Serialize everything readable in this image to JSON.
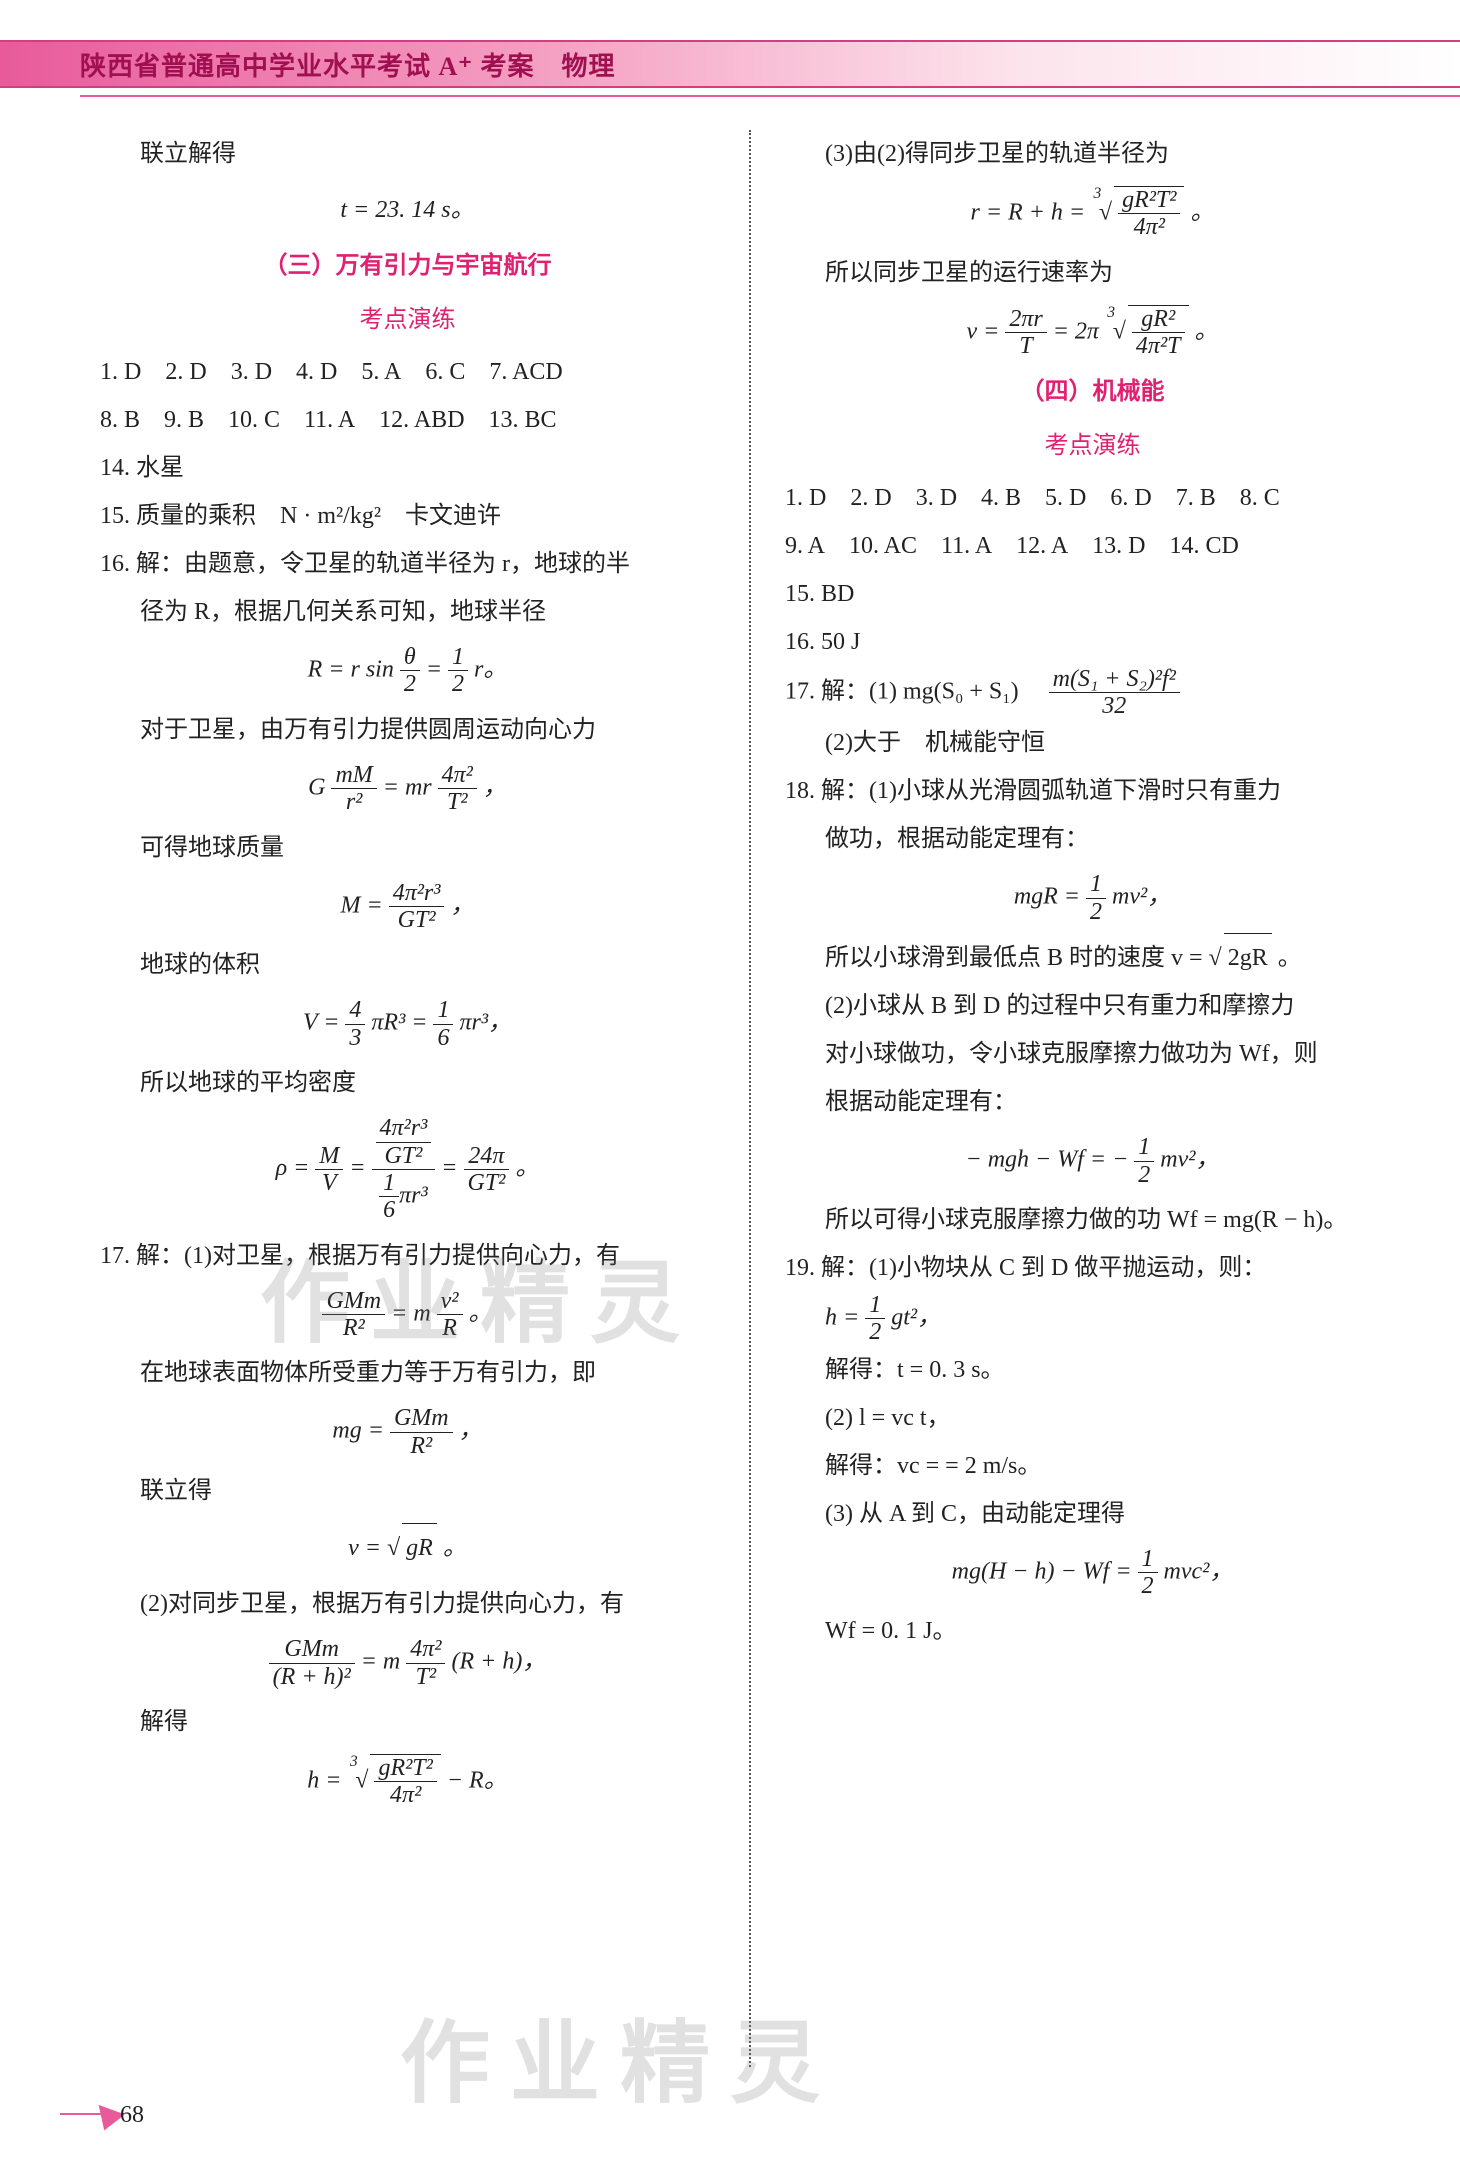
{
  "header": {
    "title": "陕西省普通高中学业水平考试 A⁺ 考案　物理"
  },
  "colors": {
    "accent": "#e02070",
    "band_start": "#e85a9a",
    "band_text": "#a01050",
    "text": "#222222",
    "wm": "rgba(120,120,120,0.22)"
  },
  "watermark": "作业精灵",
  "page_number": "68",
  "left": {
    "p1": "联立解得",
    "f1": "t = 23. 14 s。",
    "sec3_title": "（三）万有引力与宇宙航行",
    "sec3_sub": "考点演练",
    "ans_row1": [
      "1. D",
      "2. D",
      "3. D",
      "4. D",
      "5. A",
      "6. C",
      "7. ACD"
    ],
    "ans_row2": [
      "8. B",
      "9. B",
      "10. C",
      "11. A",
      "12. ABD",
      "13. BC"
    ],
    "l14": "14. 水星",
    "l15": "15. 质量的乘积　N · m²/kg²　卡文迪许",
    "l16a": "16. 解：由题意，令卫星的轨道半径为 r，地球的半",
    "l16b": "径为 R，根据几何关系可知，地球半径",
    "f16_1_lhs": "R = r sin",
    "f16_1_num": "θ",
    "f16_1_den": "2",
    "f16_1_mid": " = ",
    "f16_1_num2": "1",
    "f16_1_den2": "2",
    "f16_1_tail": " r。",
    "l16c": "对于卫星，由万有引力提供圆周运动向心力",
    "f16_2_a": "G",
    "f16_2_num1": "mM",
    "f16_2_den1": "r²",
    "f16_2_mid": " = mr",
    "f16_2_num2": "4π²",
    "f16_2_den2": "T²",
    "f16_2_tail": "，",
    "l16d": "可得地球质量",
    "f16_3_a": "M = ",
    "f16_3_num": "4π²r³",
    "f16_3_den": "GT²",
    "f16_3_tail": "，",
    "l16e": "地球的体积",
    "f16_4_a": "V = ",
    "f16_4_num1": "4",
    "f16_4_den1": "3",
    "f16_4_mid1": "πR³ = ",
    "f16_4_num2": "1",
    "f16_4_den2": "6",
    "f16_4_tail": "πr³，",
    "l16f": "所以地球的平均密度",
    "f16_5_a": "ρ = ",
    "f16_5_num1": "M",
    "f16_5_den1": "V",
    "f16_5_mid": " = ",
    "f16_5_bignum_num": "4π²r³",
    "f16_5_bignum_den": "GT²",
    "f16_5_bigden_num": "1",
    "f16_5_bigden_den": "6",
    "f16_5_bigden_tail": "πr³",
    "f16_5_mid2": " = ",
    "f16_5_num3": "24π",
    "f16_5_den3": "GT²",
    "f16_5_tail": "。",
    "l17a": "17. 解：(1)对卫星，根据万有引力提供向心力，有",
    "f17_1_num1": "GMm",
    "f17_1_den1": "R²",
    "f17_1_mid": " = m",
    "f17_1_num2": "v²",
    "f17_1_den2": "R",
    "f17_1_tail": "。",
    "l17b": "在地球表面物体所受重力等于万有引力，即",
    "f17_2_a": "mg = ",
    "f17_2_num": "GMm",
    "f17_2_den": "R²",
    "f17_2_tail": "，",
    "l17c": "联立得",
    "f17_3": "v = ",
    "f17_3_rad": "gR",
    "f17_3_tail": "。",
    "l17d": "(2)对同步卫星，根据万有引力提供向心力，有",
    "f17_4_num1": "GMm",
    "f17_4_den1": "(R + h)²",
    "f17_4_mid": " = m",
    "f17_4_num2": "4π²",
    "f17_4_den2": "T²",
    "f17_4_tail": "(R + h)，",
    "l17e": "解得",
    "f17_5_a": "h = ",
    "f17_5_rad_num": "gR²T²",
    "f17_5_rad_den": "4π²",
    "f17_5_tail": " − R。"
  },
  "right": {
    "p1": "(3)由(2)得同步卫星的轨道半径为",
    "f1_a": "r = R + h = ",
    "f1_rad_num": "gR²T²",
    "f1_rad_den": "4π²",
    "f1_tail": "。",
    "p2": "所以同步卫星的运行速率为",
    "f2_a": "v = ",
    "f2_num1": "2πr",
    "f2_den1": "T",
    "f2_mid": " = 2π",
    "f2_rad_num": "gR²",
    "f2_rad_den": "4π²T",
    "f2_tail": "。",
    "sec4_title": "（四）机械能",
    "sec4_sub": "考点演练",
    "ans_r1": [
      "1. D",
      "2. D",
      "3. D",
      "4. B",
      "5. D",
      "6. D",
      "7. B",
      "8. C"
    ],
    "ans_r2": [
      "9. A",
      "10. AC",
      "11. A",
      "12. A",
      "13. D",
      "14. CD"
    ],
    "l15": "15. BD",
    "l16": "16. 50 J",
    "l17a": "17. 解：(1) mg(S₀ + S₁)　",
    "f17_num": "m(S₁ + S₂)²f²",
    "f17_den": "32",
    "l17b": "(2)大于　机械能守恒",
    "l18a": "18. 解：(1)小球从光滑圆弧轨道下滑时只有重力",
    "l18b": "做功，根据动能定理有：",
    "f18_1_a": "mgR = ",
    "f18_1_num": "1",
    "f18_1_den": "2",
    "f18_1_tail": "mv²，",
    "l18c": "所以小球滑到最低点 B 时的速度 v = ",
    "f18c_rad": "2gR",
    "f18c_tail": "。",
    "l18d": "(2)小球从 B 到 D 的过程中只有重力和摩擦力",
    "l18e": "对小球做功，令小球克服摩擦力做功为 Wf，则",
    "l18f": "根据动能定理有：",
    "f18_2_a": "− mgh − Wf = −",
    "f18_2_num": "1",
    "f18_2_den": "2",
    "f18_2_tail": "mv²，",
    "l18g": "所以可得小球克服摩擦力做的功 Wf = mg(R − h)。",
    "l19a": "19. 解：(1)小物块从 C 到 D 做平抛运动，则：",
    "f19_1_a": "h = ",
    "f19_1_num": "1",
    "f19_1_den": "2",
    "f19_1_tail": "gt²，",
    "l19b": "解得：t = 0. 3 s。",
    "l19c": "(2) l = vc t，",
    "l19d": "解得：vc =  = 2 m/s。",
    "l19e": "(3) 从 A 到 C，由动能定理得",
    "f19_2_a": "mg(H − h) − Wf = ",
    "f19_2_num": "1",
    "f19_2_den": "2",
    "f19_2_tail": "mvc²，",
    "l19f": "Wf = 0. 1 J。"
  }
}
